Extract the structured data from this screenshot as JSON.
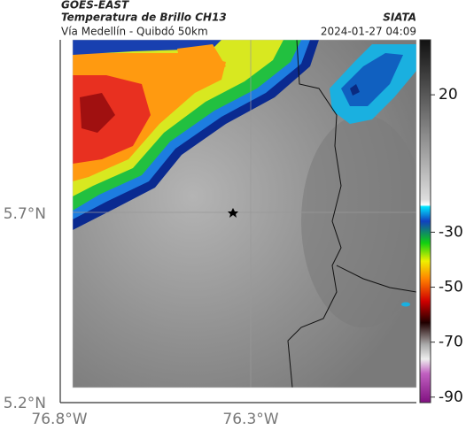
{
  "header": {
    "source": "GOES-EAST",
    "title": "Temperatura de Brillo CH13",
    "subtitle": "Vía Medellín - Quibdó 50km",
    "agency": "SIATA",
    "timestamp": "2024-01-27 04:09"
  },
  "map": {
    "lat_labels": [
      "5.7°N",
      "5.2°N"
    ],
    "lon_labels": [
      "76.8°W",
      "76.3°W"
    ]
  },
  "colorbar": {
    "lim": [
      -92,
      40
    ],
    "ticks": [
      20,
      -30,
      -50,
      -70,
      -90
    ]
  }
}
